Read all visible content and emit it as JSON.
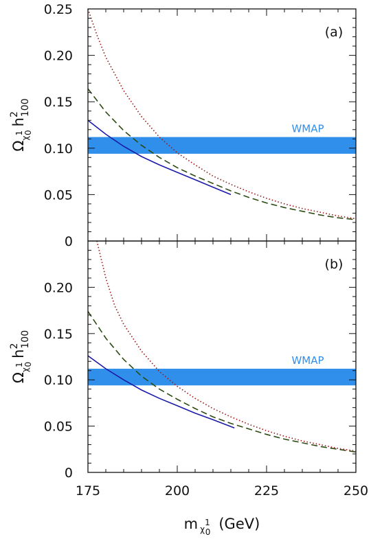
{
  "chart_data": {
    "type": "line",
    "xlabel": {
      "main": "m",
      "sub": "χ",
      "sup": "1",
      "sub2": "0",
      "unit": "(GeV)"
    },
    "ylabel": {
      "main": "Ω",
      "sub": "χ",
      "sup": "1",
      "sub2": "0",
      "h": "h",
      "hsup": "2",
      "hsub": "100"
    },
    "xlim": [
      175,
      250
    ],
    "ylim": [
      0,
      0.25
    ],
    "x_ticks": [
      "175",
      "200",
      "225",
      "250"
    ],
    "y_ticks": [
      "0",
      "0.05",
      "0.10",
      "0.15",
      "0.20",
      "0.25"
    ],
    "band": {
      "label": "WMAP",
      "y_range": [
        0.094,
        0.112
      ],
      "color": "#2f8fea"
    },
    "panels": [
      {
        "label": "(a)",
        "show_top_tick": true,
        "series": [
          {
            "style": "solid",
            "color": "#1a1aa8",
            "points": [
              [
                175,
                0.13
              ],
              [
                180,
                0.115
              ],
              [
                185,
                0.102
              ],
              [
                190,
                0.091
              ],
              [
                195,
                0.082
              ],
              [
                200,
                0.074
              ],
              [
                205,
                0.066
              ],
              [
                210,
                0.058
              ],
              [
                215,
                0.05
              ]
            ]
          },
          {
            "style": "dashed",
            "color": "#2a4a10",
            "points": [
              [
                175,
                0.164
              ],
              [
                180,
                0.139
              ],
              [
                185,
                0.119
              ],
              [
                190,
                0.103
              ],
              [
                195,
                0.09
              ],
              [
                200,
                0.079
              ],
              [
                205,
                0.07
              ],
              [
                210,
                0.062
              ],
              [
                215,
                0.054
              ],
              [
                220,
                0.047
              ],
              [
                225,
                0.041
              ],
              [
                230,
                0.036
              ],
              [
                235,
                0.032
              ],
              [
                240,
                0.028
              ],
              [
                245,
                0.025
              ],
              [
                250,
                0.023
              ]
            ]
          },
          {
            "style": "dotted",
            "color": "#a01818",
            "points": [
              [
                175,
                0.25
              ],
              [
                177.5,
                0.222
              ],
              [
                180,
                0.198
              ],
              [
                185,
                0.162
              ],
              [
                190,
                0.134
              ],
              [
                195,
                0.112
              ],
              [
                200,
                0.095
              ],
              [
                205,
                0.082
              ],
              [
                210,
                0.07
              ],
              [
                215,
                0.061
              ],
              [
                220,
                0.053
              ],
              [
                225,
                0.046
              ],
              [
                230,
                0.04
              ],
              [
                235,
                0.035
              ],
              [
                240,
                0.031
              ],
              [
                245,
                0.027
              ],
              [
                250,
                0.024
              ]
            ]
          }
        ]
      },
      {
        "label": "(b)",
        "show_top_tick": false,
        "series": [
          {
            "style": "solid",
            "color": "#1a1aa8",
            "points": [
              [
                175,
                0.126
              ],
              [
                180,
                0.112
              ],
              [
                185,
                0.1
              ],
              [
                190,
                0.089
              ],
              [
                195,
                0.08
              ],
              [
                200,
                0.072
              ],
              [
                205,
                0.064
              ],
              [
                210,
                0.057
              ],
              [
                216,
                0.048
              ]
            ]
          },
          {
            "style": "dashed",
            "color": "#2a4a10",
            "points": [
              [
                175,
                0.174
              ],
              [
                180,
                0.145
              ],
              [
                185,
                0.122
              ],
              [
                190,
                0.104
              ],
              [
                195,
                0.09
              ],
              [
                200,
                0.079
              ],
              [
                205,
                0.069
              ],
              [
                210,
                0.06
              ],
              [
                215,
                0.053
              ],
              [
                220,
                0.047
              ],
              [
                225,
                0.041
              ],
              [
                230,
                0.036
              ],
              [
                235,
                0.032
              ],
              [
                240,
                0.028
              ],
              [
                245,
                0.025
              ],
              [
                250,
                0.022
              ]
            ]
          },
          {
            "style": "dotted",
            "color": "#a01818",
            "points": [
              [
                177.5,
                0.25
              ],
              [
                180,
                0.21
              ],
              [
                182.5,
                0.18
              ],
              [
                185,
                0.16
              ],
              [
                190,
                0.131
              ],
              [
                195,
                0.109
              ],
              [
                200,
                0.093
              ],
              [
                205,
                0.08
              ],
              [
                210,
                0.069
              ],
              [
                215,
                0.06
              ],
              [
                220,
                0.052
              ],
              [
                225,
                0.045
              ],
              [
                230,
                0.039
              ],
              [
                235,
                0.034
              ],
              [
                240,
                0.03
              ],
              [
                245,
                0.026
              ],
              [
                250,
                0.023
              ]
            ]
          }
        ]
      }
    ]
  }
}
